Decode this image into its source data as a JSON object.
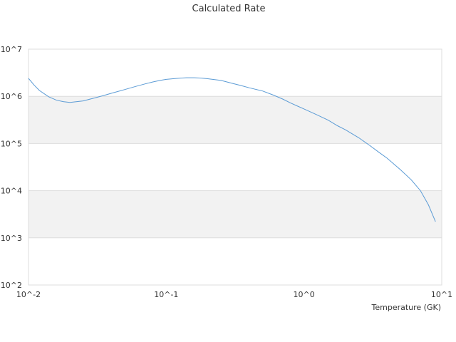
{
  "chart_data": {
    "type": "line",
    "title": "Calculated Rate",
    "xlabel": "Temperature (GK)",
    "ylabel": "",
    "x_scale": "log",
    "y_scale": "log",
    "xlim": [
      0.01,
      10
    ],
    "ylim": [
      100,
      10000000
    ],
    "x_tick_labels": [
      "10^-2",
      "10^-1",
      "10^0",
      "10^1"
    ],
    "y_tick_labels": [
      "10^2",
      "10^3",
      "10^4",
      "10^5",
      "10^6",
      "10^7"
    ],
    "grid": "horizontal bands",
    "legend": "none",
    "series": [
      {
        "color": "#5b9bd5",
        "x": [
          0.01,
          0.011,
          0.012,
          0.014,
          0.016,
          0.018,
          0.02,
          0.025,
          0.03,
          0.035,
          0.04,
          0.05,
          0.06,
          0.07,
          0.08,
          0.09,
          0.1,
          0.12,
          0.14,
          0.16,
          0.18,
          0.2,
          0.25,
          0.3,
          0.35,
          0.4,
          0.5,
          0.6,
          0.7,
          0.8,
          0.9,
          1.0,
          1.25,
          1.5,
          1.75,
          2.0,
          2.5,
          3.0,
          3.5,
          4.0,
          5.0,
          6.0,
          7.0,
          8.0,
          9.0
        ],
        "y": [
          2400000,
          1720000,
          1330000,
          981000,
          827000,
          771000,
          745000,
          800000,
          920000,
          1040000,
          1160000,
          1390000,
          1620000,
          1830000,
          2020000,
          2170000,
          2290000,
          2400000,
          2480000,
          2480000,
          2440000,
          2360000,
          2170000,
          1890000,
          1690000,
          1520000,
          1300000,
          1060000,
          876000,
          722000,
          618000,
          540000,
          402000,
          312000,
          238000,
          195000,
          132000,
          91000,
          65000,
          49000,
          28000,
          17000,
          10000,
          5000,
          2200
        ]
      }
    ]
  }
}
